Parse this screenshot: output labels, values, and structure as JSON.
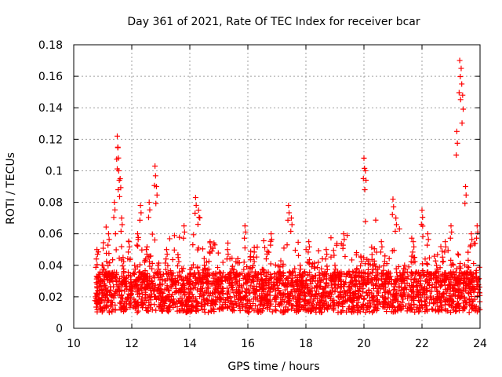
{
  "chart_data": {
    "type": "scatter",
    "title": "Day 361 of 2021, Rate Of TEC Index for receiver bcar",
    "xlabel": "GPS time / hours",
    "ylabel": "ROTI / TECUs",
    "xlim": [
      10,
      24
    ],
    "ylim": [
      0,
      0.18
    ],
    "x_ticks": [
      "10",
      "12",
      "14",
      "16",
      "18",
      "20",
      "22",
      "24"
    ],
    "y_ticks": [
      "0",
      "0.02",
      "0.04",
      "0.06",
      "0.08",
      "0.1",
      "0.12",
      "0.14",
      "0.16",
      "0.18"
    ],
    "grid": true,
    "marker": "+",
    "color": "#ff0000",
    "series": [
      {
        "x": [
          10.75,
          10.8,
          10.9,
          11.0,
          11.1,
          11.2,
          11.3,
          11.4,
          11.5,
          11.52,
          11.55,
          11.6,
          11.65,
          11.7,
          11.8,
          11.9,
          12.0,
          12.1,
          12.2,
          12.3,
          12.4,
          12.5,
          12.6,
          12.7,
          12.8,
          12.85,
          12.9,
          13.0,
          13.2,
          13.4,
          13.6,
          13.8,
          14.0,
          14.2,
          14.3,
          14.5,
          14.7,
          15.0,
          15.3,
          15.6,
          15.9,
          16.2,
          16.5,
          16.8,
          17.1,
          17.4,
          17.5,
          17.8,
          18.1,
          18.4,
          18.7,
          19.0,
          19.3,
          19.6,
          19.9,
          20.0,
          20.05,
          20.3,
          20.6,
          20.9,
          21.0,
          21.1,
          21.4,
          21.7,
          22.0,
          22.2,
          22.5,
          22.8,
          23.0,
          23.2,
          23.3,
          23.35,
          23.4,
          23.5,
          23.7,
          23.9
        ],
        "y": [
          0.02,
          0.05,
          0.03,
          0.04,
          0.025,
          0.06,
          0.035,
          0.08,
          0.122,
          0.115,
          0.1,
          0.095,
          0.07,
          0.045,
          0.03,
          0.055,
          0.025,
          0.04,
          0.06,
          0.078,
          0.035,
          0.05,
          0.08,
          0.03,
          0.103,
          0.09,
          0.04,
          0.025,
          0.05,
          0.03,
          0.045,
          0.065,
          0.035,
          0.083,
          0.075,
          0.04,
          0.055,
          0.03,
          0.05,
          0.035,
          0.065,
          0.045,
          0.03,
          0.06,
          0.035,
          0.078,
          0.07,
          0.04,
          0.055,
          0.03,
          0.05,
          0.04,
          0.06,
          0.03,
          0.045,
          0.108,
          0.1,
          0.04,
          0.055,
          0.035,
          0.082,
          0.07,
          0.04,
          0.055,
          0.075,
          0.06,
          0.04,
          0.055,
          0.065,
          0.125,
          0.17,
          0.165,
          0.148,
          0.09,
          0.06,
          0.065
        ]
      }
    ]
  }
}
